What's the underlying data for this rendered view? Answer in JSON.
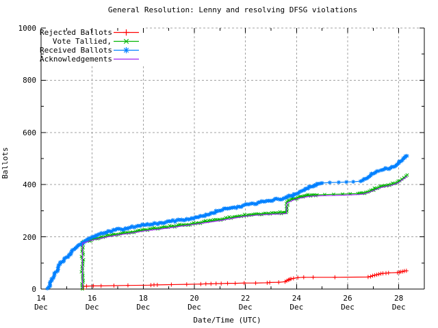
{
  "chart_data": {
    "type": "line",
    "title": "General Resolution: Lenny and resolving DFSG violations",
    "xlabel": "Date/Time (UTC)",
    "ylabel": "Ballots",
    "x_month_label": "Dec",
    "x_range_days": [
      14,
      29
    ],
    "x_major_tick_days": [
      14,
      16,
      18,
      20,
      22,
      24,
      26,
      28
    ],
    "x_minor_tick_days": [
      15,
      17,
      19,
      21,
      23,
      25,
      27
    ],
    "ylim": [
      0,
      1000
    ],
    "y_major_ticks": [
      0,
      200,
      400,
      600,
      800,
      1000
    ],
    "y_minor_ticks": [
      100,
      300,
      500,
      700,
      900
    ],
    "grid": "dashed-gray-at-major-ticks",
    "legend_position": "top-left-inside",
    "colors": {
      "background": "#ffffff",
      "axis": "#000000",
      "grid": "#a0a0a0",
      "text": "#000000"
    },
    "series": [
      {
        "name": "Rejected Ballots",
        "color": "#ff0000",
        "marker": "plus",
        "dense": false,
        "jitter": 0,
        "points": [
          [
            15.66,
            0
          ],
          [
            15.66,
            10
          ],
          [
            15.78,
            11
          ],
          [
            16.05,
            12
          ],
          [
            16.35,
            12
          ],
          [
            16.85,
            13
          ],
          [
            17.4,
            14
          ],
          [
            18.3,
            15
          ],
          [
            18.42,
            16
          ],
          [
            18.55,
            16
          ],
          [
            19.1,
            17
          ],
          [
            19.7,
            18
          ],
          [
            20.25,
            19
          ],
          [
            20.45,
            20
          ],
          [
            20.65,
            20
          ],
          [
            20.85,
            21
          ],
          [
            21.05,
            21
          ],
          [
            21.3,
            22
          ],
          [
            21.6,
            22
          ],
          [
            21.95,
            23
          ],
          [
            22.4,
            23
          ],
          [
            22.85,
            24
          ],
          [
            22.95,
            25
          ],
          [
            23.3,
            26
          ],
          [
            23.55,
            28
          ],
          [
            23.62,
            32
          ],
          [
            23.68,
            35
          ],
          [
            23.73,
            37
          ],
          [
            23.78,
            39
          ],
          [
            23.88,
            41
          ],
          [
            24.05,
            44
          ],
          [
            24.28,
            45
          ],
          [
            24.65,
            45
          ],
          [
            25.5,
            45
          ],
          [
            26.8,
            46
          ],
          [
            26.9,
            48
          ],
          [
            26.98,
            51
          ],
          [
            27.06,
            53
          ],
          [
            27.14,
            55
          ],
          [
            27.22,
            57
          ],
          [
            27.3,
            59
          ],
          [
            27.38,
            60
          ],
          [
            27.5,
            61
          ],
          [
            27.6,
            62
          ],
          [
            27.95,
            63
          ],
          [
            28.02,
            64
          ],
          [
            28.08,
            66
          ],
          [
            28.15,
            67
          ],
          [
            28.22,
            69
          ],
          [
            28.3,
            70
          ]
        ]
      },
      {
        "name": "Vote Tallied,",
        "color": "#00b400",
        "marker": "cross",
        "dense": true,
        "jitter": 1.6,
        "points": [
          [
            15.62,
            0
          ],
          [
            15.62,
            178
          ],
          [
            15.72,
            182
          ],
          [
            15.85,
            186
          ],
          [
            16.0,
            190
          ],
          [
            16.15,
            194
          ],
          [
            16.3,
            197
          ],
          [
            16.5,
            201
          ],
          [
            16.7,
            205
          ],
          [
            16.9,
            209
          ],
          [
            17.1,
            212
          ],
          [
            17.3,
            215
          ],
          [
            17.5,
            218
          ],
          [
            17.7,
            221
          ],
          [
            17.9,
            224
          ],
          [
            18.1,
            227
          ],
          [
            18.3,
            230
          ],
          [
            18.5,
            232
          ],
          [
            18.7,
            235
          ],
          [
            18.9,
            237
          ],
          [
            19.1,
            240
          ],
          [
            19.3,
            242
          ],
          [
            19.5,
            245
          ],
          [
            19.7,
            247
          ],
          [
            19.9,
            250
          ],
          [
            20.1,
            253
          ],
          [
            20.3,
            256
          ],
          [
            20.5,
            259
          ],
          [
            20.7,
            262
          ],
          [
            20.9,
            265
          ],
          [
            21.1,
            268
          ],
          [
            21.3,
            272
          ],
          [
            21.5,
            275
          ],
          [
            21.7,
            278
          ],
          [
            21.9,
            281
          ],
          [
            22.1,
            284
          ],
          [
            22.3,
            286
          ],
          [
            22.5,
            288
          ],
          [
            22.7,
            289
          ],
          [
            22.9,
            290
          ],
          [
            23.1,
            291
          ],
          [
            23.3,
            292
          ],
          [
            23.45,
            293
          ],
          [
            23.6,
            293
          ],
          [
            23.63,
            334
          ],
          [
            23.75,
            340
          ],
          [
            23.9,
            346
          ],
          [
            24.05,
            350
          ],
          [
            24.2,
            354
          ],
          [
            24.35,
            357
          ],
          [
            24.5,
            359
          ],
          [
            24.65,
            360
          ],
          [
            24.8,
            361
          ],
          [
            25.1,
            362
          ],
          [
            25.45,
            363
          ],
          [
            25.8,
            364
          ],
          [
            26.1,
            365
          ],
          [
            26.4,
            366
          ],
          [
            26.6,
            368
          ],
          [
            26.72,
            371
          ],
          [
            26.85,
            375
          ],
          [
            26.97,
            380
          ],
          [
            27.1,
            385
          ],
          [
            27.22,
            390
          ],
          [
            27.33,
            394
          ],
          [
            27.45,
            397
          ],
          [
            27.58,
            399
          ],
          [
            27.7,
            401
          ],
          [
            27.82,
            404
          ],
          [
            27.94,
            409
          ],
          [
            28.04,
            415
          ],
          [
            28.12,
            421
          ],
          [
            28.2,
            427
          ],
          [
            28.28,
            433
          ],
          [
            28.33,
            437
          ]
        ]
      },
      {
        "name": "Received Ballots",
        "color": "#0080ff",
        "marker": "asterisk",
        "dense": true,
        "jitter": 1.8,
        "points": [
          [
            14.25,
            2
          ],
          [
            14.3,
            8
          ],
          [
            14.35,
            18
          ],
          [
            14.42,
            32
          ],
          [
            14.5,
            48
          ],
          [
            14.58,
            65
          ],
          [
            14.66,
            82
          ],
          [
            14.74,
            95
          ],
          [
            14.82,
            104
          ],
          [
            14.9,
            112
          ],
          [
            15.0,
            122
          ],
          [
            15.1,
            132
          ],
          [
            15.2,
            142
          ],
          [
            15.3,
            152
          ],
          [
            15.4,
            161
          ],
          [
            15.5,
            170
          ],
          [
            15.6,
            177
          ],
          [
            15.7,
            184
          ],
          [
            15.8,
            190
          ],
          [
            15.9,
            195
          ],
          [
            16.0,
            200
          ],
          [
            16.15,
            206
          ],
          [
            16.3,
            211
          ],
          [
            16.5,
            216
          ],
          [
            16.7,
            221
          ],
          [
            16.9,
            226
          ],
          [
            17.1,
            230
          ],
          [
            17.3,
            233
          ],
          [
            17.5,
            236
          ],
          [
            17.7,
            239
          ],
          [
            17.9,
            242
          ],
          [
            18.1,
            245
          ],
          [
            18.3,
            248
          ],
          [
            18.5,
            251
          ],
          [
            18.7,
            254
          ],
          [
            18.9,
            257
          ],
          [
            19.1,
            260
          ],
          [
            19.3,
            263
          ],
          [
            19.5,
            266
          ],
          [
            19.7,
            269
          ],
          [
            19.9,
            272
          ],
          [
            20.1,
            275
          ],
          [
            20.3,
            279
          ],
          [
            20.5,
            285
          ],
          [
            20.7,
            292
          ],
          [
            20.9,
            298
          ],
          [
            21.1,
            303
          ],
          [
            21.3,
            308
          ],
          [
            21.5,
            312
          ],
          [
            21.7,
            316
          ],
          [
            21.9,
            320
          ],
          [
            22.1,
            324
          ],
          [
            22.3,
            328
          ],
          [
            22.5,
            332
          ],
          [
            22.7,
            335
          ],
          [
            22.9,
            338
          ],
          [
            23.1,
            341
          ],
          [
            23.3,
            344
          ],
          [
            23.5,
            348
          ],
          [
            23.65,
            352
          ],
          [
            23.8,
            357
          ],
          [
            23.95,
            363
          ],
          [
            24.1,
            370
          ],
          [
            24.25,
            378
          ],
          [
            24.4,
            385
          ],
          [
            24.55,
            392
          ],
          [
            24.7,
            398
          ],
          [
            24.85,
            403
          ],
          [
            25.0,
            406
          ],
          [
            25.3,
            408
          ],
          [
            25.65,
            409
          ],
          [
            25.95,
            410
          ],
          [
            26.22,
            411
          ],
          [
            26.5,
            413
          ],
          [
            26.6,
            417
          ],
          [
            26.7,
            422
          ],
          [
            26.8,
            428
          ],
          [
            26.9,
            435
          ],
          [
            27.0,
            442
          ],
          [
            27.1,
            448
          ],
          [
            27.2,
            452
          ],
          [
            27.3,
            455
          ],
          [
            27.42,
            458
          ],
          [
            27.55,
            461
          ],
          [
            27.68,
            464
          ],
          [
            27.8,
            468
          ],
          [
            27.9,
            474
          ],
          [
            28.0,
            482
          ],
          [
            28.08,
            489
          ],
          [
            28.16,
            496
          ],
          [
            28.24,
            503
          ],
          [
            28.32,
            510
          ]
        ]
      },
      {
        "name": "Acknowledgements",
        "color": "#a020f0",
        "marker": "none",
        "dense": false,
        "jitter": 0,
        "points": [
          [
            15.62,
            0
          ],
          [
            15.62,
            176
          ],
          [
            16.0,
            187
          ],
          [
            16.5,
            198
          ],
          [
            17.0,
            207
          ],
          [
            17.5,
            214
          ],
          [
            18.0,
            222
          ],
          [
            18.5,
            228
          ],
          [
            19.0,
            234
          ],
          [
            19.5,
            241
          ],
          [
            20.0,
            248
          ],
          [
            20.5,
            255
          ],
          [
            21.0,
            262
          ],
          [
            21.5,
            271
          ],
          [
            22.0,
            279
          ],
          [
            22.3,
            282
          ],
          [
            22.7,
            285
          ],
          [
            23.1,
            287
          ],
          [
            23.6,
            289
          ],
          [
            23.63,
            330
          ],
          [
            23.9,
            342
          ],
          [
            24.2,
            350
          ],
          [
            24.5,
            355
          ],
          [
            24.8,
            357
          ],
          [
            25.3,
            358
          ],
          [
            25.9,
            360
          ],
          [
            26.4,
            362
          ],
          [
            26.6,
            364
          ],
          [
            26.85,
            371
          ],
          [
            27.1,
            381
          ],
          [
            27.35,
            390
          ],
          [
            27.6,
            395
          ],
          [
            27.82,
            400
          ],
          [
            28.0,
            408
          ],
          [
            28.12,
            417
          ],
          [
            28.24,
            425
          ],
          [
            28.33,
            432
          ]
        ]
      }
    ]
  }
}
